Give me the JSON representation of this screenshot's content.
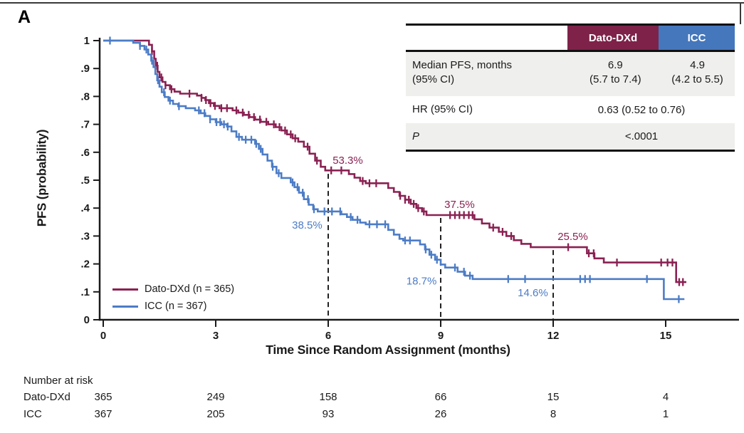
{
  "panel_label": "A",
  "colors": {
    "dato": "#8A2152",
    "icc": "#4C7CC6",
    "dato_header_bg": "#7E2249",
    "icc_header_bg": "#4577BC",
    "table_row_shade": "#EFEFED",
    "axis": "#1A1A1A",
    "dashed_line": "#222222"
  },
  "stats_table": {
    "header": {
      "dato": "Dato-DXd",
      "icc": "ICC"
    },
    "rows": {
      "median": {
        "label_line1": "Median PFS, months",
        "label_line2": "(95% CI)",
        "dato_line1": "6.9",
        "dato_line2": "(5.7 to 7.4)",
        "icc_line1": "4.9",
        "icc_line2": "(4.2 to 5.5)"
      },
      "hr": {
        "label": "HR (95% CI)",
        "value": "0.63 (0.52 to 0.76)"
      },
      "p": {
        "label": "P",
        "value": "<.0001"
      }
    }
  },
  "legend": {
    "items": [
      {
        "key": "dato",
        "label": "Dato-DXd (n = 365)"
      },
      {
        "key": "icc",
        "label": "ICC (n = 367)"
      }
    ]
  },
  "chart_data": {
    "type": "line",
    "subtype": "kaplan-meier-step",
    "title": "",
    "xlabel": "Time Since Random Assignment (months)",
    "ylabel": "PFS (probability)",
    "xlim": [
      0,
      15.8
    ],
    "ylim": [
      0,
      1
    ],
    "grid": false,
    "xticks": {
      "values": [
        0,
        3,
        6,
        9,
        12,
        15
      ],
      "labels": [
        "0",
        "3",
        "6",
        "9",
        "12",
        "15"
      ]
    },
    "yticks": {
      "values": [
        0,
        0.1,
        0.2,
        0.3,
        0.4,
        0.5,
        0.6,
        0.7,
        0.8,
        0.9,
        1
      ],
      "labels": [
        "0",
        ".1",
        ".2",
        ".3",
        ".4",
        ".5",
        ".6",
        ".7",
        ".8",
        ".9",
        "1"
      ]
    },
    "series": [
      {
        "name": "Dato-DXd (n = 365)",
        "color_key": "dato",
        "end_time": 15.55,
        "steps": [
          [
            0,
            1
          ],
          [
            1.22,
            0.985
          ],
          [
            1.3,
            0.962
          ],
          [
            1.36,
            0.935
          ],
          [
            1.4,
            0.91
          ],
          [
            1.45,
            0.888
          ],
          [
            1.5,
            0.868
          ],
          [
            1.58,
            0.852
          ],
          [
            1.66,
            0.84
          ],
          [
            1.78,
            0.826
          ],
          [
            1.9,
            0.817
          ],
          [
            2.05,
            0.81
          ],
          [
            2.5,
            0.803
          ],
          [
            2.62,
            0.795
          ],
          [
            2.72,
            0.787
          ],
          [
            2.82,
            0.776
          ],
          [
            2.95,
            0.766
          ],
          [
            3.1,
            0.758
          ],
          [
            3.45,
            0.75
          ],
          [
            3.6,
            0.742
          ],
          [
            3.75,
            0.734
          ],
          [
            3.9,
            0.726
          ],
          [
            4.05,
            0.717
          ],
          [
            4.2,
            0.709
          ],
          [
            4.4,
            0.7
          ],
          [
            4.6,
            0.69
          ],
          [
            4.75,
            0.678
          ],
          [
            4.9,
            0.664
          ],
          [
            5.05,
            0.65
          ],
          [
            5.2,
            0.638
          ],
          [
            5.35,
            0.62
          ],
          [
            5.5,
            0.595
          ],
          [
            5.65,
            0.57
          ],
          [
            5.8,
            0.548
          ],
          [
            5.92,
            0.535
          ],
          [
            6.55,
            0.522
          ],
          [
            6.7,
            0.509
          ],
          [
            6.85,
            0.497
          ],
          [
            7,
            0.489
          ],
          [
            7.6,
            0.472
          ],
          [
            7.75,
            0.458
          ],
          [
            7.9,
            0.444
          ],
          [
            8.05,
            0.43
          ],
          [
            8.2,
            0.415
          ],
          [
            8.35,
            0.4
          ],
          [
            8.5,
            0.388
          ],
          [
            8.62,
            0.375
          ],
          [
            9.9,
            0.36
          ],
          [
            10.1,
            0.345
          ],
          [
            10.3,
            0.33
          ],
          [
            10.55,
            0.315
          ],
          [
            10.75,
            0.3
          ],
          [
            10.95,
            0.285
          ],
          [
            11.15,
            0.272
          ],
          [
            11.4,
            0.26
          ],
          [
            12.9,
            0.238
          ],
          [
            13.1,
            0.22
          ],
          [
            13.35,
            0.205
          ],
          [
            15.28,
            0.135
          ]
        ],
        "censor_times": [
          1.3,
          1.44,
          1.55,
          1.66,
          1.82,
          2.3,
          2.62,
          2.74,
          2.86,
          2.98,
          3.15,
          3.3,
          3.55,
          3.72,
          3.88,
          4.02,
          4.18,
          4.35,
          4.55,
          4.7,
          4.85,
          5,
          5.12,
          5.45,
          5.7,
          6.08,
          6.35,
          6.92,
          7.1,
          7.28,
          7.92,
          8.05,
          8.15,
          8.28,
          8.4,
          8.55,
          9.25,
          9.38,
          9.5,
          9.62,
          9.75,
          9.85,
          10.4,
          10.65,
          10.88,
          12.4,
          12.95,
          13.08,
          13.7,
          14.88,
          15.05,
          15.18,
          15.36,
          15.46
        ]
      },
      {
        "name": "ICC (n = 367)",
        "color_key": "icc",
        "end_time": 15.5,
        "steps": [
          [
            0,
            1
          ],
          [
            0.8,
            0.992
          ],
          [
            0.98,
            0.981
          ],
          [
            1.1,
            0.968
          ],
          [
            1.2,
            0.95
          ],
          [
            1.28,
            0.928
          ],
          [
            1.34,
            0.905
          ],
          [
            1.39,
            0.88
          ],
          [
            1.44,
            0.858
          ],
          [
            1.5,
            0.835
          ],
          [
            1.56,
            0.815
          ],
          [
            1.64,
            0.798
          ],
          [
            1.74,
            0.785
          ],
          [
            1.86,
            0.773
          ],
          [
            2,
            0.765
          ],
          [
            2.2,
            0.758
          ],
          [
            2.45,
            0.75
          ],
          [
            2.6,
            0.74
          ],
          [
            2.72,
            0.73
          ],
          [
            2.85,
            0.718
          ],
          [
            3,
            0.708
          ],
          [
            3.15,
            0.7
          ],
          [
            3.3,
            0.692
          ],
          [
            3.42,
            0.675
          ],
          [
            3.55,
            0.655
          ],
          [
            3.7,
            0.645
          ],
          [
            4.05,
            0.63
          ],
          [
            4.15,
            0.612
          ],
          [
            4.25,
            0.592
          ],
          [
            4.38,
            0.57
          ],
          [
            4.5,
            0.548
          ],
          [
            4.62,
            0.525
          ],
          [
            4.75,
            0.508
          ],
          [
            5,
            0.492
          ],
          [
            5.1,
            0.475
          ],
          [
            5.22,
            0.455
          ],
          [
            5.35,
            0.432
          ],
          [
            5.48,
            0.412
          ],
          [
            5.6,
            0.396
          ],
          [
            5.72,
            0.388
          ],
          [
            6.35,
            0.378
          ],
          [
            6.5,
            0.368
          ],
          [
            6.65,
            0.358
          ],
          [
            6.85,
            0.348
          ],
          [
            7,
            0.342
          ],
          [
            7.6,
            0.322
          ],
          [
            7.75,
            0.305
          ],
          [
            7.9,
            0.29
          ],
          [
            8,
            0.284
          ],
          [
            8.45,
            0.27
          ],
          [
            8.58,
            0.252
          ],
          [
            8.7,
            0.233
          ],
          [
            8.85,
            0.215
          ],
          [
            9,
            0.198
          ],
          [
            9.12,
            0.187
          ],
          [
            9.45,
            0.172
          ],
          [
            9.65,
            0.158
          ],
          [
            9.85,
            0.146
          ],
          [
            14.95,
            0.074
          ]
        ],
        "censor_times": [
          0.18,
          0.98,
          1.15,
          1.3,
          1.46,
          1.62,
          1.78,
          2.02,
          2.55,
          2.7,
          2.85,
          3.02,
          3.12,
          3.22,
          3.32,
          3.62,
          3.8,
          3.95,
          4.08,
          4.2,
          4.52,
          4.68,
          5.05,
          5.18,
          5.32,
          5.46,
          5.62,
          5.9,
          6.1,
          6.32,
          6.6,
          6.78,
          7.1,
          7.3,
          7.52,
          8.05,
          8.18,
          8.6,
          8.75,
          8.9,
          9.38,
          9.62,
          9.78,
          10.8,
          11.25,
          12.72,
          12.85,
          12.98,
          14.5,
          15.35
        ]
      }
    ],
    "dashed_lines": [
      {
        "t": 6,
        "v": 0.533
      },
      {
        "t": 9,
        "v": 0.375
      },
      {
        "t": 12,
        "v": 0.26
      }
    ],
    "annotations": [
      {
        "text": "53.3%",
        "series": "dato",
        "t": 6.08,
        "v": 0.533,
        "placement": "above-right"
      },
      {
        "text": "38.5%",
        "series": "icc",
        "t": 5.88,
        "v": 0.388,
        "placement": "below-left"
      },
      {
        "text": "37.5%",
        "series": "dato",
        "t": 9.06,
        "v": 0.375,
        "placement": "above-right"
      },
      {
        "text": "18.7%",
        "series": "icc",
        "t": 8.93,
        "v": 0.187,
        "placement": "below-left"
      },
      {
        "text": "25.5%",
        "series": "dato",
        "t": 12.08,
        "v": 0.26,
        "placement": "above-right"
      },
      {
        "text": "14.6%",
        "series": "icc",
        "t": 11.9,
        "v": 0.146,
        "placement": "below-left"
      }
    ],
    "risk_table": {
      "title": "Number at risk",
      "time_points": [
        0,
        3,
        6,
        9,
        12,
        15
      ],
      "rows": [
        {
          "label": "Dato-DXd",
          "counts": [
            "365",
            "249",
            "158",
            "66",
            "15",
            "4"
          ]
        },
        {
          "label": "ICC",
          "counts": [
            "367",
            "205",
            "93",
            "26",
            "8",
            "1"
          ]
        }
      ]
    }
  }
}
